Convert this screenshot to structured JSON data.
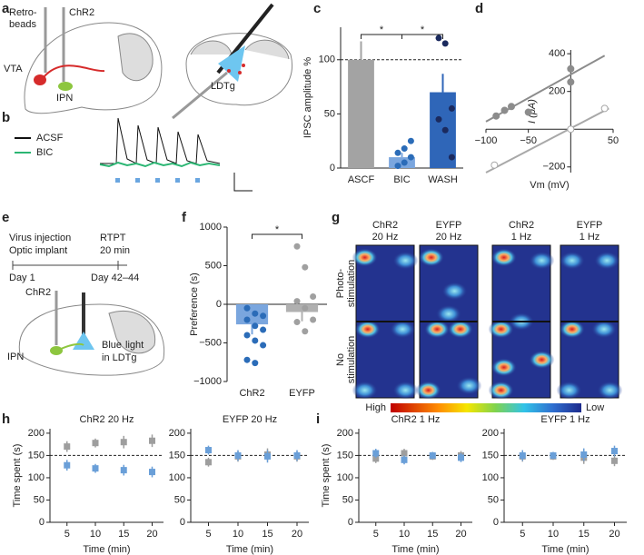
{
  "panel_labels": [
    "a",
    "b",
    "c",
    "d",
    "e",
    "f",
    "g",
    "h",
    "i"
  ],
  "panel_a": {
    "labels": [
      "Retro-",
      "beads",
      "ChR2",
      "VTA",
      "IPN",
      "LDTg"
    ]
  },
  "panel_b": {
    "legend": [
      {
        "name": "ACSF",
        "color": "#111111"
      },
      {
        "name": "BIC",
        "color": "#2bb673"
      }
    ]
  },
  "panel_e": {
    "timeline": [
      "Virus injection",
      "Optic implant",
      "RTPT",
      "20 min",
      "Day 1",
      "Day 42–44"
    ],
    "labels": [
      "ChR2",
      "IPN",
      "Blue",
      "light",
      "in LDTg"
    ]
  },
  "panel_g": {
    "columns": [
      [
        "ChR2",
        "20 Hz"
      ],
      [
        "EYFP",
        "20 Hz"
      ],
      [
        "ChR2",
        "1 Hz"
      ],
      [
        "EYFP",
        "1 Hz"
      ]
    ],
    "rows": [
      [
        "Photo-",
        "stimulation"
      ],
      [
        "No",
        "stimulation"
      ]
    ],
    "scale": [
      "High",
      "Low"
    ]
  },
  "chart_data": [
    {
      "type": "bar",
      "ylabel": "IPSC amplitude %",
      "categories": [
        "ASCF",
        "BIC",
        "WASH"
      ],
      "values": [
        100,
        10,
        70
      ],
      "errors": [
        17,
        4,
        17
      ],
      "colors": [
        "#a3a3a3",
        "#7aa6de",
        "#2f66b8"
      ],
      "points": [
        {
          "category": "BIC",
          "color": "#2b6cb8",
          "values": [
            2,
            5,
            10,
            14,
            18,
            25
          ]
        },
        {
          "category": "WASH",
          "color": "#1b2a5e",
          "values": [
            120,
            115,
            55,
            45,
            35,
            10
          ]
        }
      ],
      "ylim": [
        0,
        130
      ],
      "yticks": [
        0,
        50,
        100
      ],
      "hline": 100,
      "annotations": [
        "*",
        "*"
      ]
    },
    {
      "type": "scatter",
      "xlabel": "Vm (mV)",
      "ylabel": "I (pA)",
      "xlim": [
        -100,
        50
      ],
      "xticks": [
        {
          "value": -100,
          "label": "−100"
        },
        {
          "value": -50,
          "label": "−50"
        },
        50
      ],
      "ylim": [
        -230,
        420
      ],
      "yticks": [
        {
          "value": -200,
          "label": "−200"
        },
        200,
        400
      ],
      "series": [
        {
          "color": "#8c8c8c",
          "fill": true,
          "x": [
            -88,
            -78,
            -70,
            -50,
            0,
            0
          ],
          "y": [
            70,
            100,
            120,
            90,
            320,
            250
          ],
          "fit": [
            [
              -100,
              40
            ],
            [
              40,
              390
            ]
          ]
        },
        {
          "color": "#a8a8a8",
          "fill": false,
          "x": [
            -90,
            0,
            40
          ],
          "y": [
            -190,
            0,
            110
          ],
          "fit": [
            [
              -100,
              -230
            ],
            [
              45,
              110
            ]
          ]
        }
      ]
    },
    {
      "type": "bar",
      "ylabel": "Preference (s)",
      "categories": [
        "ChR2",
        "EYFP"
      ],
      "values": [
        -260,
        -100
      ],
      "errors": [
        130,
        120
      ],
      "colors": [
        "#7aa6de",
        "#b0b0b0"
      ],
      "points": [
        {
          "category": "ChR2",
          "color": "#2b6cb8",
          "values": [
            -50,
            -120,
            -150,
            -200,
            -280,
            -330,
            -400,
            -470,
            -530,
            -720,
            -760
          ]
        },
        {
          "category": "EYFP",
          "color": "#a0a0a0",
          "values": [
            750,
            480,
            100,
            40,
            -50,
            -200,
            -230,
            -350
          ]
        }
      ],
      "ylim": [
        -1000,
        1000
      ],
      "yticks": [
        {
          "value": -1000,
          "label": "−1000"
        },
        {
          "value": -500,
          "label": "−500"
        },
        0,
        500,
        1000
      ],
      "annotations": [
        "*"
      ]
    },
    {
      "type": "errorbar",
      "title": "ChR2 20 Hz",
      "xlabel": "Time (min)",
      "ylabel": "Time spent (s)",
      "x": [
        5,
        10,
        15,
        20
      ],
      "xlim": [
        2,
        22
      ],
      "xticks": [
        5,
        10,
        15,
        20
      ],
      "ylim": [
        0,
        210
      ],
      "yticks": [
        0,
        50,
        100,
        150,
        200
      ],
      "hline": 150,
      "series": [
        {
          "color": "#9e9e9e",
          "values": [
            170,
            178,
            180,
            183
          ],
          "errors": [
            12,
            10,
            14,
            14
          ]
        },
        {
          "color": "#6a9fd8",
          "values": [
            128,
            121,
            117,
            113
          ],
          "errors": [
            12,
            10,
            12,
            12
          ]
        }
      ]
    },
    {
      "type": "errorbar",
      "title": "EYFP 20 Hz",
      "xlabel": "Time (min)",
      "x": [
        5,
        10,
        15,
        20
      ],
      "xlim": [
        2,
        22
      ],
      "xticks": [
        5,
        10,
        15,
        20
      ],
      "ylim": [
        0,
        210
      ],
      "yticks": [
        0,
        50,
        100,
        150,
        200
      ],
      "hline": 150,
      "series": [
        {
          "color": "#9e9e9e",
          "values": [
            135,
            148,
            152,
            148
          ],
          "errors": [
            10,
            12,
            14,
            12
          ]
        },
        {
          "color": "#6a9fd8",
          "values": [
            162,
            150,
            148,
            150
          ],
          "errors": [
            10,
            12,
            14,
            12
          ]
        }
      ]
    },
    {
      "type": "errorbar",
      "title": "ChR2 1 Hz",
      "xlabel": "Time (min)",
      "ylabel": "Time spent (s)",
      "x": [
        5,
        10,
        15,
        20
      ],
      "xlim": [
        2,
        22
      ],
      "xticks": [
        5,
        10,
        15,
        20
      ],
      "ylim": [
        0,
        210
      ],
      "yticks": [
        0,
        50,
        100,
        150,
        200
      ],
      "hline": 150,
      "series": [
        {
          "color": "#9e9e9e",
          "values": [
            143,
            155,
            148,
            150
          ],
          "errors": [
            10,
            10,
            8,
            10
          ]
        },
        {
          "color": "#6a9fd8",
          "values": [
            155,
            140,
            150,
            145
          ],
          "errors": [
            10,
            10,
            8,
            10
          ]
        }
      ]
    },
    {
      "type": "errorbar",
      "title": "EYFP 1 Hz",
      "xlabel": "Time (min)",
      "x": [
        5,
        10,
        15,
        20
      ],
      "xlim": [
        2,
        22
      ],
      "xticks": [
        5,
        10,
        15,
        20
      ],
      "ylim": [
        0,
        210
      ],
      "yticks": [
        0,
        50,
        100,
        150,
        200
      ],
      "hline": 150,
      "series": [
        {
          "color": "#9e9e9e",
          "values": [
            148,
            148,
            145,
            138
          ],
          "errors": [
            12,
            8,
            14,
            12
          ]
        },
        {
          "color": "#6a9fd8",
          "values": [
            150,
            150,
            152,
            160
          ],
          "errors": [
            12,
            8,
            14,
            12
          ]
        }
      ]
    }
  ]
}
